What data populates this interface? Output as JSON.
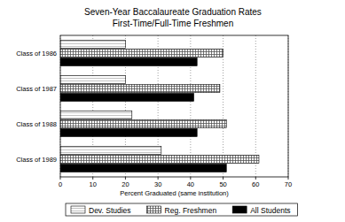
{
  "chart_data": {
    "type": "bar",
    "orientation": "horizontal",
    "title": "Seven-Year Baccalaureate Graduation Rates",
    "subtitle": "First-Time/Full-Time Freshmen",
    "x_label": "Percent Graduated (same institution)",
    "categories": [
      "Class of 1986",
      "Class of 1987",
      "Class of 1988",
      "Class of 1989"
    ],
    "series": [
      {
        "name": "Dev. Studies",
        "color": "#999999",
        "values": [
          20,
          20,
          22,
          31
        ]
      },
      {
        "name": "Reg. Freshmen",
        "color": "#555555",
        "values": [
          50,
          49,
          51,
          61
        ]
      },
      {
        "name": "All Students",
        "color": "#000000",
        "values": [
          42,
          41,
          42,
          51
        ]
      }
    ],
    "xlim": [
      0,
      70
    ],
    "xticks": [
      0,
      10,
      20,
      30,
      40,
      50,
      60,
      70
    ],
    "grid": true,
    "legend": "bottom"
  }
}
